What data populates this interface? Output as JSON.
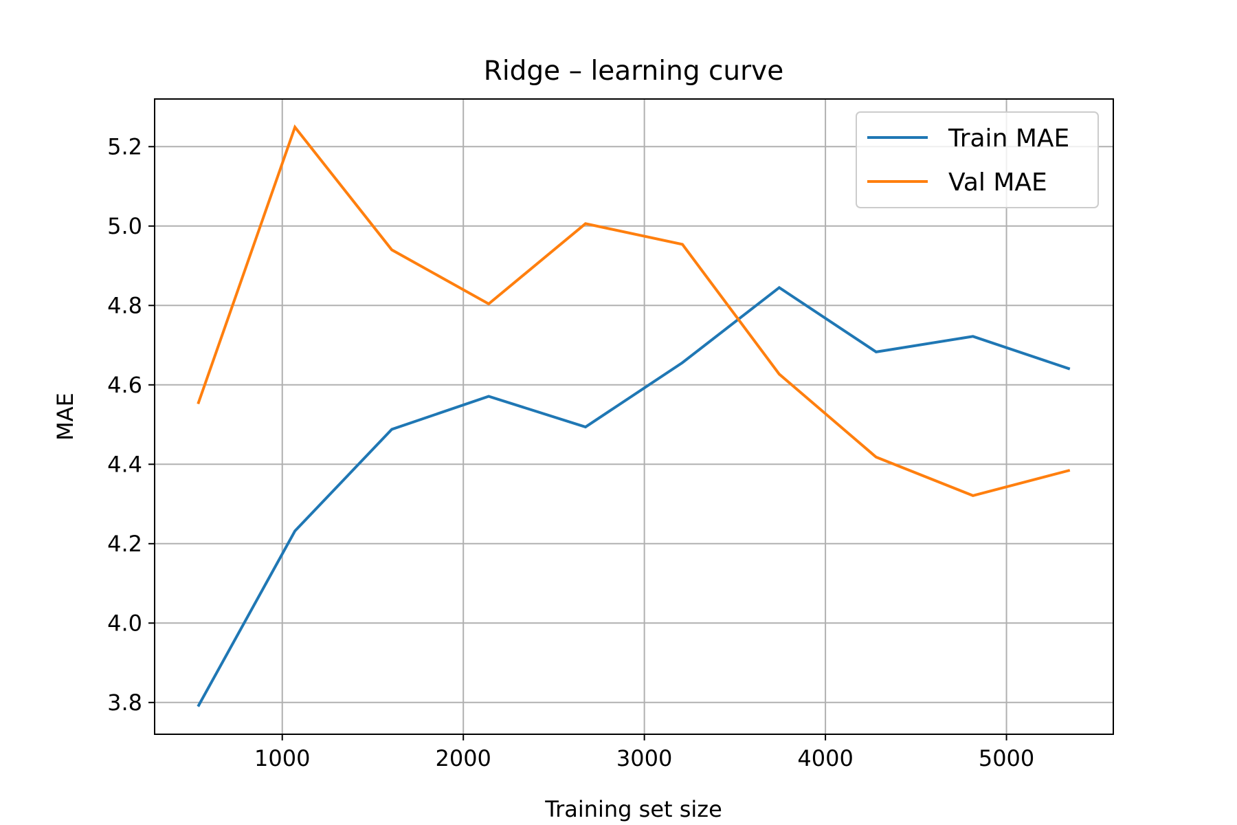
{
  "chart_data": {
    "type": "line",
    "title": "Ridge – learning curve",
    "xlabel": "Training set size",
    "ylabel": "MAE",
    "xlim": [
      295,
      5590
    ],
    "ylim": [
      3.72,
      5.32
    ],
    "xticks": [
      1000,
      2000,
      3000,
      4000,
      5000
    ],
    "yticks": [
      3.8,
      4.0,
      4.2,
      4.4,
      4.6,
      4.8,
      5.0,
      5.2
    ],
    "xtick_labels": [
      "1000",
      "2000",
      "3000",
      "4000",
      "5000"
    ],
    "ytick_labels": [
      "3.8",
      "4.0",
      "4.2",
      "4.4",
      "4.6",
      "4.8",
      "5.0",
      "5.2"
    ],
    "grid": true,
    "legend_position": "top-right",
    "x": [
      535,
      1070,
      1605,
      2140,
      2675,
      3210,
      3745,
      4280,
      4815,
      5350
    ],
    "series": [
      {
        "name": "Train MAE",
        "color": "#1f77b4",
        "values": [
          3.79,
          4.232,
          4.488,
          4.571,
          4.494,
          4.656,
          4.845,
          4.683,
          4.722,
          4.64
        ]
      },
      {
        "name": "Val MAE",
        "color": "#ff7f0e",
        "values": [
          4.552,
          5.249,
          4.94,
          4.804,
          5.006,
          4.954,
          4.627,
          4.418,
          4.321,
          4.385
        ]
      }
    ]
  }
}
